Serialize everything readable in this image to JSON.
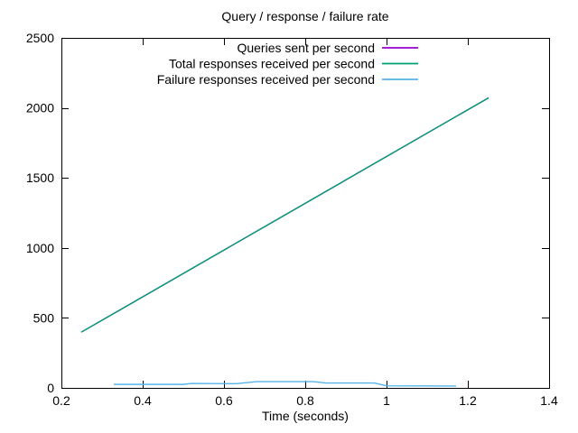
{
  "page": {
    "background": "#ffffff",
    "text_color": "#000000",
    "frame_color": "#000000"
  },
  "chart_data": {
    "type": "line",
    "title": "Query / response / failure rate",
    "xlabel": "Time (seconds)",
    "ylabel": "",
    "xlim": [
      0.2,
      1.4
    ],
    "ylim": [
      0,
      2500
    ],
    "xticks": [
      0.2,
      0.4,
      0.6,
      0.8,
      1,
      1.2,
      1.4
    ],
    "xtick_labels": [
      "0.2",
      "0.4",
      "0.6",
      "0.8",
      "1",
      "1.2",
      "1.4"
    ],
    "yticks": [
      0,
      500,
      1000,
      1500,
      2000,
      2500
    ],
    "ytick_labels": [
      "0",
      "500",
      "1000",
      "1500",
      "2000",
      "2500"
    ],
    "grid": false,
    "legend_position": "top-center-inside",
    "series": [
      {
        "name": "Queries sent per second",
        "color": "#9400d3",
        "points": [
          [
            0.25,
            400
          ],
          [
            1.25,
            2070
          ]
        ]
      },
      {
        "name": "Total responses received per second",
        "color": "#009e73",
        "points": [
          [
            0.25,
            400
          ],
          [
            1.25,
            2070
          ]
        ]
      },
      {
        "name": "Failure responses received per second",
        "color": "#56b4e9",
        "points": [
          [
            0.33,
            25
          ],
          [
            0.5,
            25
          ],
          [
            0.52,
            32
          ],
          [
            0.63,
            30
          ],
          [
            0.68,
            45
          ],
          [
            0.82,
            45
          ],
          [
            0.85,
            35
          ],
          [
            0.97,
            35
          ],
          [
            1.0,
            15
          ],
          [
            1.17,
            13
          ]
        ]
      }
    ]
  }
}
